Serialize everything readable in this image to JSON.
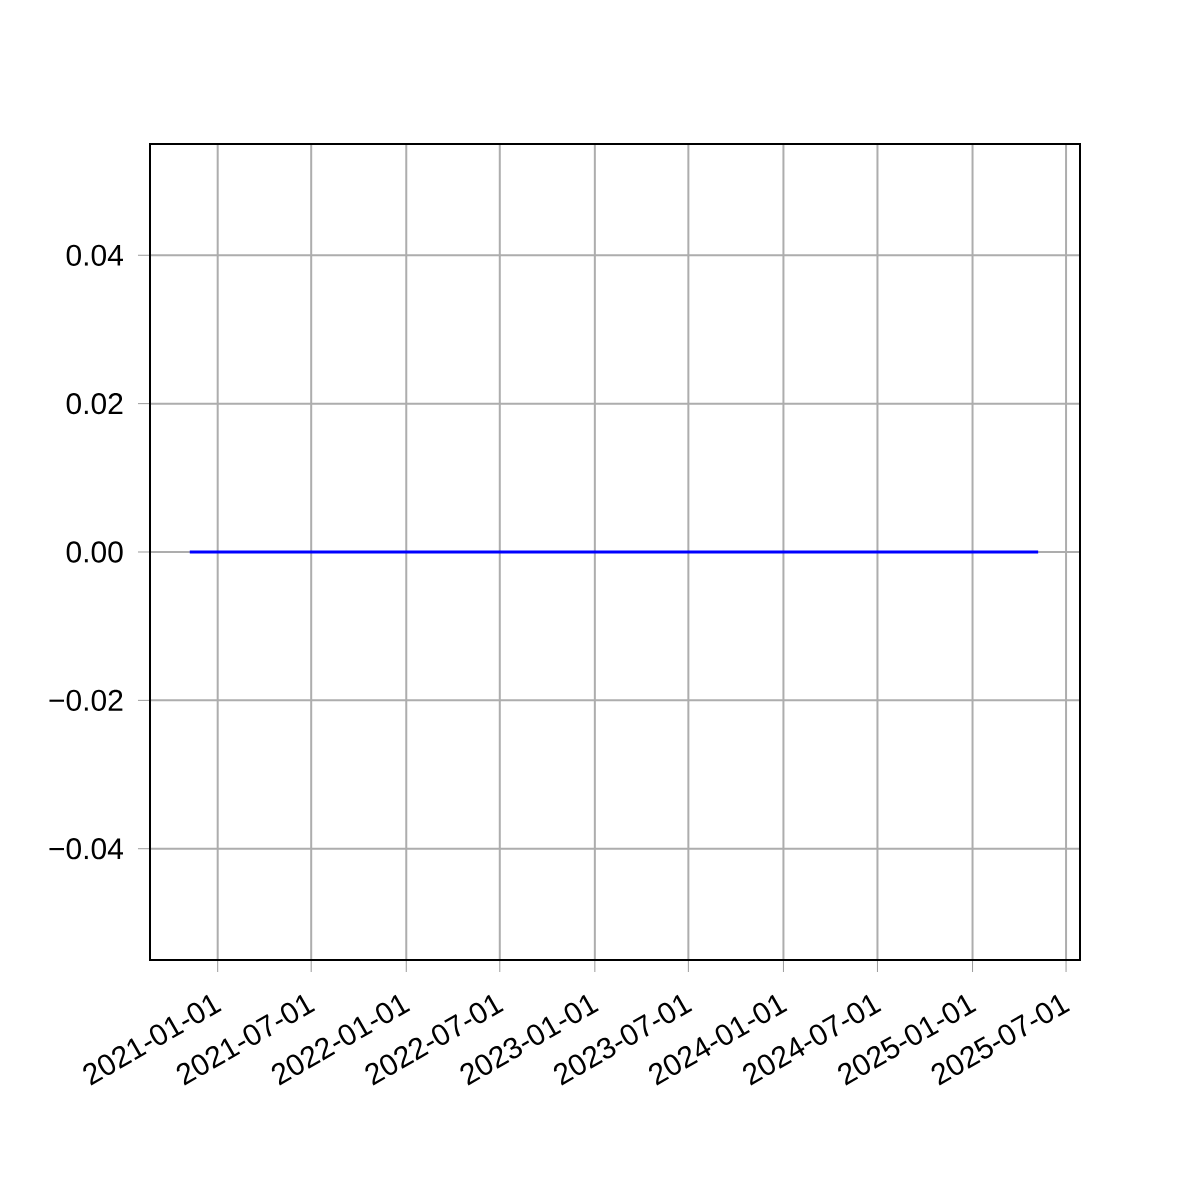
{
  "chart_data": {
    "type": "line",
    "x": [
      "2020-11-08",
      "2025-05-08"
    ],
    "series": [
      {
        "color": "#0000ff",
        "values": [
          0,
          0
        ]
      }
    ],
    "xlim": [
      "2020-08-23",
      "2025-07-28"
    ],
    "xticks": [
      "2021-01-01",
      "2021-07-01",
      "2022-01-01",
      "2022-07-01",
      "2023-01-01",
      "2023-07-01",
      "2024-01-01",
      "2024-07-01",
      "2025-01-01",
      "2025-07-01"
    ],
    "ylim": [
      -0.055,
      0.055
    ],
    "yticks": [
      {
        "value": -0.04,
        "label": "−0.04"
      },
      {
        "value": -0.02,
        "label": "−0.02"
      },
      {
        "value": 0,
        "label": "0.00"
      },
      {
        "value": 0.02,
        "label": "0.02"
      },
      {
        "value": 0.04,
        "label": "0.04"
      }
    ],
    "grid": true,
    "marker": "none",
    "line_style": "solid"
  }
}
